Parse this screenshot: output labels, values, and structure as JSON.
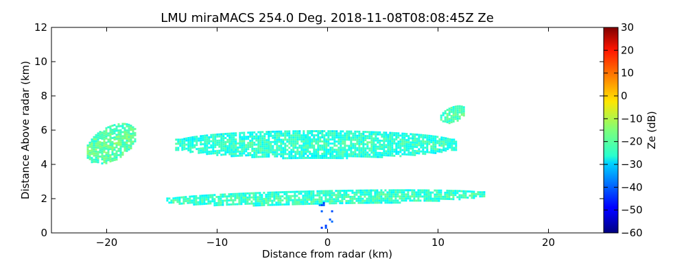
{
  "chart_data": {
    "type": "heatmap",
    "title": "LMU miraMACS 254.0 Deg. 2018-11-08T08:08:45Z  Ze",
    "xlabel": "Distance from radar (km)",
    "ylabel": "Distance Above radar  (km)",
    "xlim": [
      -25,
      25
    ],
    "ylim": [
      0,
      12
    ],
    "x_ticks": [
      -20,
      -10,
      0,
      10,
      20
    ],
    "x_tick_labels": [
      "−20",
      "−10",
      "0",
      "10",
      "20"
    ],
    "y_ticks": [
      0,
      2,
      4,
      6,
      8,
      10,
      12
    ],
    "y_tick_labels": [
      "0",
      "2",
      "4",
      "6",
      "8",
      "10",
      "12"
    ],
    "colorbar": {
      "label": "Ze (dB)",
      "range": [
        -60,
        30
      ],
      "ticks": [
        -60,
        -50,
        -40,
        -30,
        -20,
        -10,
        0,
        10,
        20,
        30
      ],
      "tick_labels": [
        "−60",
        "−50",
        "−40",
        "−30",
        "−20",
        "−10",
        "0",
        "10",
        "20",
        "30"
      ],
      "colormap": "jet"
    },
    "grid": false,
    "regions": [
      {
        "name": "upper-left-patch",
        "x_range": [
          -21.8,
          -17.5
        ],
        "y_range": [
          4.2,
          6.3
        ],
        "ze_mean": -20,
        "slant": 0.35
      },
      {
        "name": "upper-layer",
        "x_range": [
          -13.8,
          11.6
        ],
        "y_range": [
          4.4,
          6.0
        ],
        "ze_mean": -24,
        "slant": 0.0
      },
      {
        "name": "upper-right-patch",
        "x_range": [
          10.2,
          12.4
        ],
        "y_range": [
          6.5,
          7.4
        ],
        "ze_mean": -21,
        "slant": 0.3
      },
      {
        "name": "lower-layer",
        "x_range": [
          -14.6,
          14.2
        ],
        "y_range": [
          1.7,
          2.5
        ],
        "ze_mean": -23,
        "slant": 0.02
      },
      {
        "name": "near-radar-column",
        "x_range": [
          -0.8,
          0.4
        ],
        "y_range": [
          0.0,
          1.8
        ],
        "ze_mean": -40,
        "slant": 0.0
      }
    ]
  }
}
